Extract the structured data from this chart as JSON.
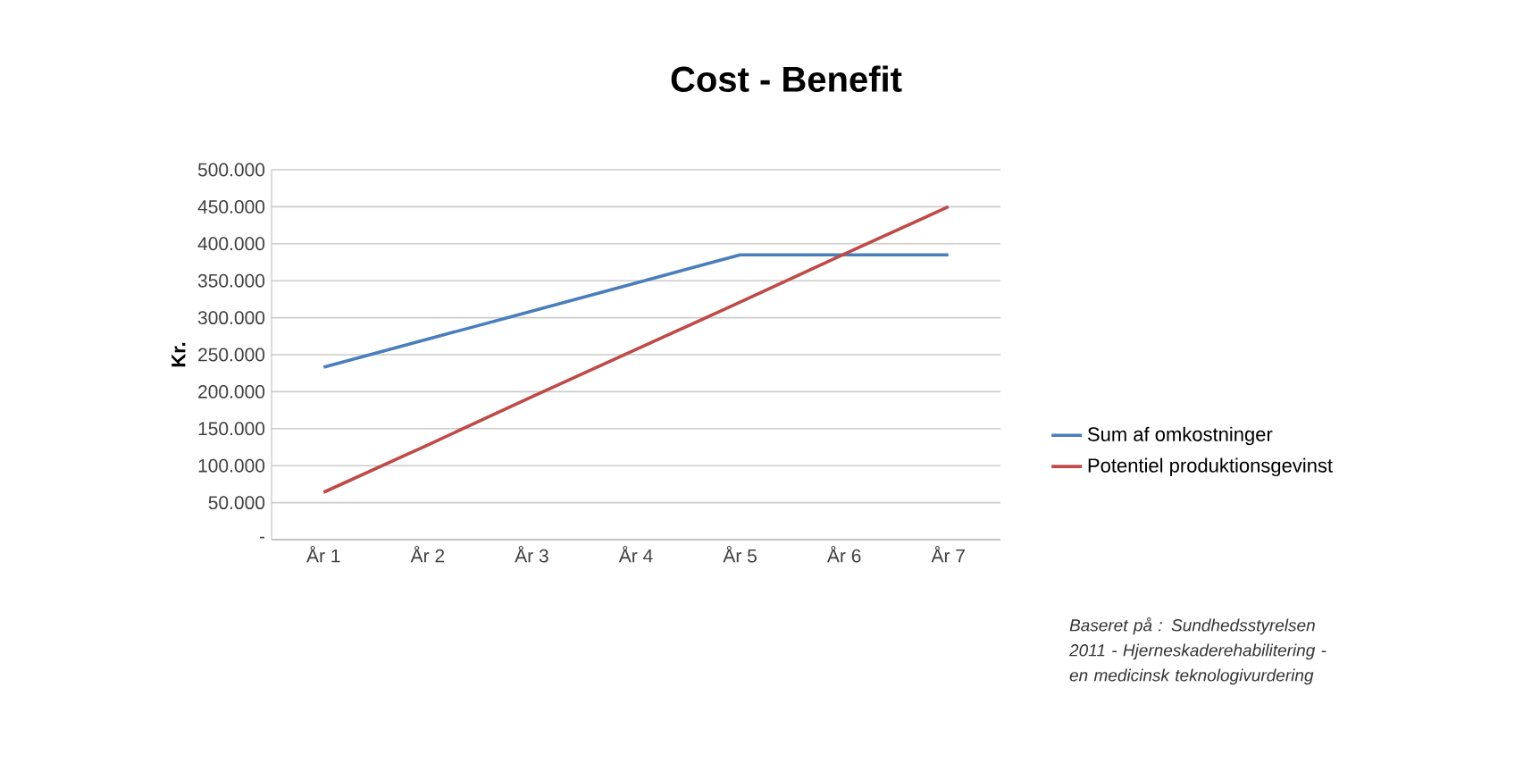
{
  "chart_data": {
    "type": "line",
    "title": "Cost - Benefit",
    "ylabel": "Kr.",
    "categories": [
      "År 1",
      "År 2",
      "År 3",
      "År 4",
      "År 5",
      "År 6",
      "År 7"
    ],
    "series": [
      {
        "name": "Sum af omkostninger",
        "color": "#4a7ebb",
        "values": [
          233000,
          271000,
          309000,
          347000,
          385000,
          385000,
          385000
        ]
      },
      {
        "name": "Potentiel produktionsgevinst",
        "color": "#be4b48",
        "values": [
          64000,
          128000,
          193000,
          257000,
          321000,
          386000,
          450000
        ]
      }
    ],
    "ylim": [
      0,
      500000
    ],
    "yticks": [
      {
        "value": 0,
        "label": "-"
      },
      {
        "value": 50000,
        "label": "50.000"
      },
      {
        "value": 100000,
        "label": "100.000"
      },
      {
        "value": 150000,
        "label": "150.000"
      },
      {
        "value": 200000,
        "label": "200.000"
      },
      {
        "value": 250000,
        "label": "250.000"
      },
      {
        "value": 300000,
        "label": "300.000"
      },
      {
        "value": 350000,
        "label": "350.000"
      },
      {
        "value": 400000,
        "label": "400.000"
      },
      {
        "value": 450000,
        "label": "450.000"
      },
      {
        "value": 500000,
        "label": "500.000"
      }
    ],
    "grid": "y",
    "legend": "right",
    "marker": "none",
    "line_style": "solid",
    "annotations": [
      "Baseret på : Sundhedsstyrelsen 2011 - Hjerneskaderehabilitering - en medicinsk teknologivurdering"
    ]
  }
}
